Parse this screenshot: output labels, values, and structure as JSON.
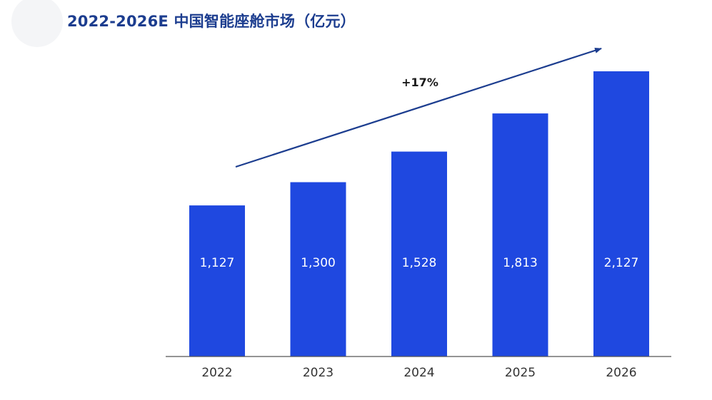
{
  "page": {
    "title": "2022-2026E 中国智能座舱市场（亿元）"
  },
  "chart_data": {
    "type": "bar",
    "title": "2022-2026E 中国智能座舱市场（亿元）",
    "categories": [
      "2022",
      "2023",
      "2024",
      "2025",
      "2026"
    ],
    "values": [
      1127,
      1300,
      1528,
      1813,
      2127
    ],
    "value_labels": [
      "1,127",
      "1,300",
      "1,528",
      "1,813",
      "2,127"
    ],
    "ylim": [
      0,
      2250
    ],
    "grid": false,
    "legend": "none",
    "annotation": "+17%",
    "colors": {
      "bar": "#1f48e0",
      "arrow": "#1c3d8f",
      "title": "#1c3d8f",
      "axis": "#555555"
    }
  }
}
